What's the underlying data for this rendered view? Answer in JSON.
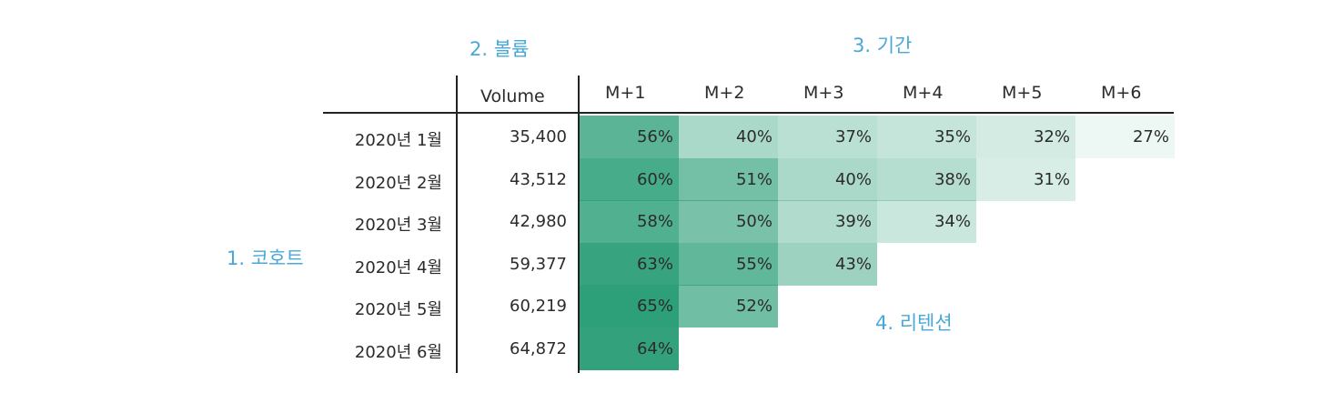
{
  "annotations": {
    "cohort": "1. 코호트",
    "volume": "2. 볼륨",
    "period": "3. 기간",
    "retention": "4. 리텐션"
  },
  "colors": {
    "cell_base": "#2ea079",
    "annotation": "#4aa8d8",
    "text": "#2b2b2b",
    "rule": "#222222"
  },
  "chart_data": {
    "type": "heatmap",
    "title": "",
    "volume_header": "Volume",
    "columns": [
      "M+1",
      "M+2",
      "M+3",
      "M+4",
      "M+5",
      "M+6"
    ],
    "rows": [
      {
        "cohort": "2020년 1월",
        "volume": "35,400",
        "values": [
          56,
          40,
          37,
          35,
          32,
          27
        ]
      },
      {
        "cohort": "2020년 2월",
        "volume": "43,512",
        "values": [
          60,
          51,
          40,
          38,
          31
        ]
      },
      {
        "cohort": "2020년 3월",
        "volume": "42,980",
        "values": [
          58,
          50,
          39,
          34
        ]
      },
      {
        "cohort": "2020년 4월",
        "volume": "59,377",
        "values": [
          63,
          55,
          43
        ]
      },
      {
        "cohort": "2020년 5월",
        "volume": "60,219",
        "values": [
          65,
          52
        ]
      },
      {
        "cohort": "2020년 6월",
        "volume": "64,872",
        "values": [
          64
        ]
      }
    ],
    "value_suffix": "%",
    "color_scale": "higher retention = darker green"
  }
}
